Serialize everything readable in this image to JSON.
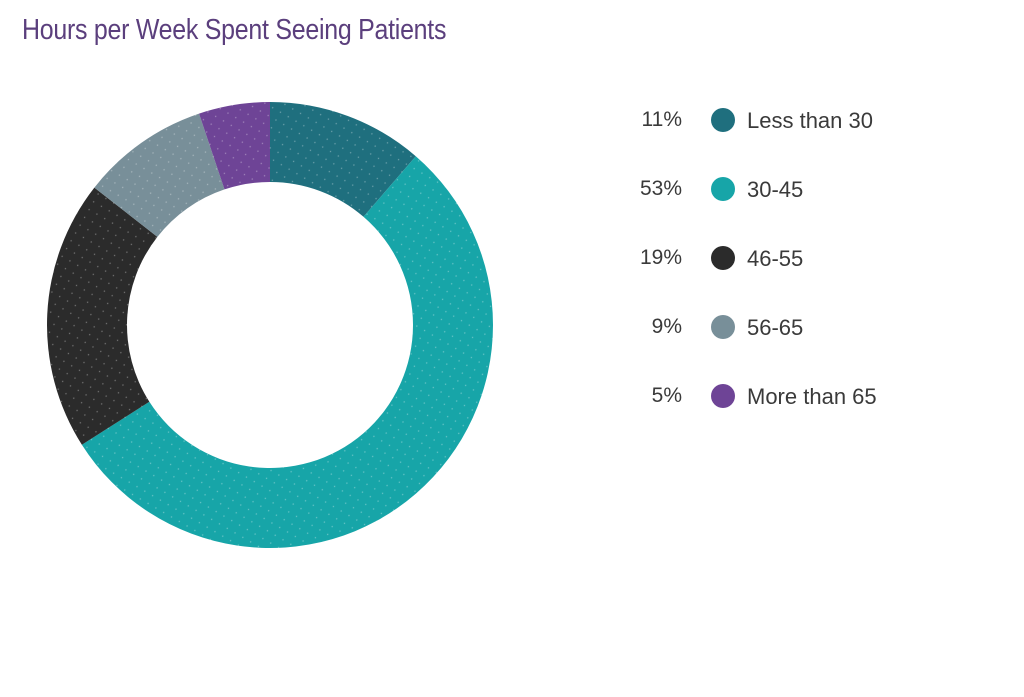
{
  "chart_data": {
    "type": "pie",
    "title": "Hours per Week Spent Seeing Patients",
    "donut": true,
    "legend_position": "right",
    "categories": [
      "Less than 30",
      "30-45",
      "46-55",
      "56-65",
      "More than 65"
    ],
    "values": [
      11,
      53,
      19,
      9,
      5
    ],
    "value_labels": [
      "11%",
      "53%",
      "19%",
      "9%",
      "5%"
    ],
    "colors": [
      "#1f6f7e",
      "#17a5a8",
      "#2b2b2b",
      "#788f99",
      "#6e4496"
    ]
  }
}
